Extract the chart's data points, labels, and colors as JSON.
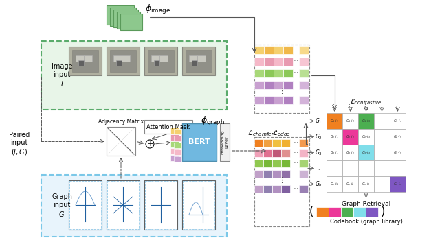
{
  "title": "",
  "bg_color": "#ffffff",
  "phi_image_text": "$\\phi_{\\mathrm{image}}$",
  "phi_graph_text": "$\\phi_{\\mathrm{graph}}$",
  "paired_input_text": "Paired\ninput\n$(I, G)$",
  "image_input_text": "Image\ninput\n$I$",
  "graph_input_text": "Graph\ninput\n$G$",
  "attention_mask_text": "Attention Mask",
  "adjacency_matrix_text": "Adjacency Matrix",
  "bert_text": "BERT",
  "embedding_layer_text": "Embedding\nLayer",
  "l_chamfer_text": "$\\mathcal{L}_{chamfer}$",
  "l_edge_text": "$\\mathcal{L}_{edge}$",
  "l_contrastive_text": "$\\mathcal{L}_{contrastive}$",
  "graph_retrieval_text": "Graph Retrieval",
  "codebook_text": "Codebook (graph library)",
  "image_box_color": "#5aab6b",
  "graph_box_color": "#7bc8e8",
  "image_emb_rows": [
    [
      "#f5d06e",
      "#f0b84a",
      "#f5d06e",
      "#f0b84a",
      "#f5d06e"
    ],
    [
      "#f5b8c8",
      "#e89ab0",
      "#f5b8c8",
      "#e89ab0",
      "#f5b8c8"
    ],
    [
      "#a8d878",
      "#8cc858",
      "#a8d878",
      "#8cc858",
      "#a8d878"
    ],
    [
      "#c8a0d0",
      "#b080c0",
      "#c8a0d0",
      "#b080c0",
      "#c8a0d0"
    ]
  ],
  "graph_emb_rows": [
    [
      "#f08020",
      "#f0a040",
      "#f0c040",
      "#f0b030",
      "#f0c840"
    ],
    [
      "#f0a0b8",
      "#e07090",
      "#e09090",
      "#c05878",
      "#e09090"
    ],
    [
      "#90c850",
      "#78b838",
      "#90c850",
      "#78b838",
      "#a8d060"
    ],
    [
      "#c0a0c8",
      "#9080b0",
      "#b090c0",
      "#9070a8",
      "#8060a0"
    ]
  ],
  "bert_color": "#70b8e0",
  "node_colors_left": [
    "#f5d06e",
    "#e89ab0",
    "#a8d878",
    "#f5b8c8",
    "#c8a0d0"
  ],
  "matrix_highlight_colors": [
    [
      "#f08020",
      "#ec3899",
      "#4caf50",
      "#80deea",
      "none"
    ],
    [
      "#f08020",
      "#ec3899",
      "#4caf50",
      "none",
      "none"
    ],
    [
      "#f08020",
      "#ec3899",
      "none",
      "none",
      "none"
    ],
    [
      "none",
      "none",
      "none",
      "none",
      "none"
    ],
    [
      "none",
      "none",
      "none",
      "none",
      "#7e57c2"
    ]
  ],
  "codebook_colors": [
    "#f08020",
    "#ec3899",
    "#4caf50",
    "#80deea",
    "#7e57c2"
  ],
  "arrow_color": "#888888"
}
